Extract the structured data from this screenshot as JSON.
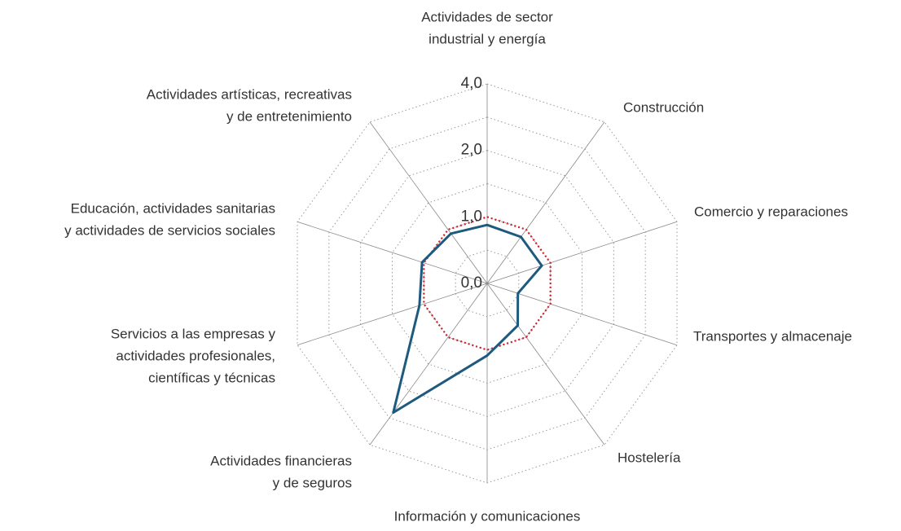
{
  "chart_data": {
    "type": "radar",
    "categories": [
      [
        "Actividades de sector",
        "industrial y energía"
      ],
      [
        "Construcción"
      ],
      [
        "Comercio y reparaciones"
      ],
      [
        "Transportes y almacenaje"
      ],
      [
        "Hostelería"
      ],
      [
        "Información y comunicaciones"
      ],
      [
        "Actividades financieras",
        "y de seguros"
      ],
      [
        "Servicios a las empresas y",
        "actividades profesionales,",
        "científicas y técnicas"
      ],
      [
        "Educación, actividades sanitarias",
        "y actividades de servicios sociales"
      ],
      [
        "Actividades artísticas, recreativas",
        "y de entretenimiento"
      ]
    ],
    "series": [
      {
        "color": "#1d5a7e",
        "values": [
          0.92,
          0.91,
          0.91,
          0.7,
          0.86,
          1.06,
          2.64,
          1.05,
          1.02,
          0.95
        ]
      }
    ],
    "reference": {
      "value": 1,
      "color": "#c8202f"
    },
    "rscale": "log",
    "rlim": [
      0.5,
      4
    ],
    "rticks": [
      {
        "value": 0,
        "label": "0,0"
      },
      {
        "value": 1,
        "label": "1,0"
      },
      {
        "value": 2,
        "label": "2,0"
      },
      {
        "value": 4,
        "label": "4,0"
      }
    ],
    "grid": true
  }
}
